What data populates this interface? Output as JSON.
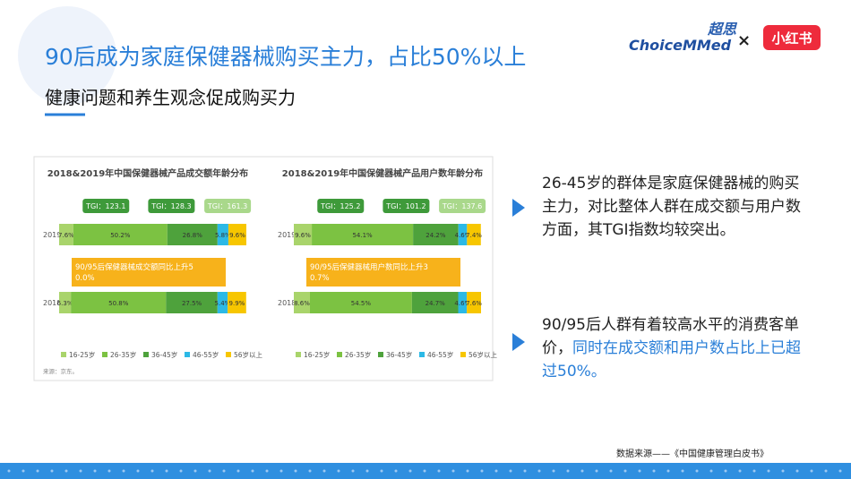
{
  "header": {
    "title": "90后成为家庭保健器械购买主力，占比50%以上",
    "subtitle": "健康问题和养生观念促成购买力",
    "logo_cn": "超思",
    "logo_en": "ChoiceMMed",
    "cross": "×",
    "partner": "小红书"
  },
  "chart_data": [
    {
      "type": "stacked_bar",
      "orientation": "horizontal",
      "title": "2018&2019年中国保健器械产品成交额年龄分布",
      "categories": [
        "2019",
        "2018"
      ],
      "xlim": [
        0,
        100
      ],
      "series": [
        {
          "name": "16-25岁",
          "color": "#a9d46b",
          "values": [
            7.6,
            6.3
          ],
          "value_labels": [
            "7.6%",
            "6.3%"
          ]
        },
        {
          "name": "26-35岁",
          "color": "#7cc242",
          "values": [
            50.2,
            50.8
          ],
          "value_labels": [
            "50.2%",
            "50.8%"
          ]
        },
        {
          "name": "36-45岁",
          "color": "#4ea23c",
          "values": [
            26.8,
            27.5
          ],
          "value_labels": [
            "26.8%",
            "27.5%"
          ]
        },
        {
          "name": "46-55岁",
          "color": "#2cb9e6",
          "values": [
            5.8,
            5.4
          ],
          "value_labels": [
            "5.8%",
            "5.4%"
          ]
        },
        {
          "name": "56岁以上",
          "color": "#f7c600",
          "values": [
            9.6,
            9.9
          ],
          "value_labels": [
            "9.6%",
            "9.9%"
          ]
        }
      ],
      "annotations": [
        "TGI：123.1",
        "TGI：128.3",
        "TGI：161.3",
        "90/95后保健器械成交额同比上升50.0%"
      ],
      "source": "来源：京东。"
    },
    {
      "type": "stacked_bar",
      "orientation": "horizontal",
      "title": "2018&2019年中国保健器械产品用户数年龄分布",
      "categories": [
        "2019",
        "2018"
      ],
      "xlim": [
        0,
        100
      ],
      "series": [
        {
          "name": "16-25岁",
          "color": "#a9d46b",
          "values": [
            9.6,
            8.6
          ],
          "value_labels": [
            "9.6%",
            "8.6%"
          ]
        },
        {
          "name": "26-35岁",
          "color": "#7cc242",
          "values": [
            54.1,
            54.5
          ],
          "value_labels": [
            "54.1%",
            "54.5%"
          ]
        },
        {
          "name": "36-45岁",
          "color": "#4ea23c",
          "values": [
            24.2,
            24.7
          ],
          "value_labels": [
            "24.2%",
            "24.7%"
          ]
        },
        {
          "name": "46-55岁",
          "color": "#2cb9e6",
          "values": [
            4.6,
            4.6
          ],
          "value_labels": [
            "4.6%",
            "4.6%"
          ]
        },
        {
          "name": "56岁以上",
          "color": "#f7c600",
          "values": [
            7.4,
            7.6
          ],
          "value_labels": [
            "7.4%",
            "7.6%"
          ]
        }
      ],
      "annotations": [
        "TGI：125.2",
        "TGI：101.2",
        "TGI：137.6",
        "90/95后保健器械用户数同比上升30.7%"
      ]
    }
  ],
  "points": [
    {
      "text": "26-45岁的群体是家庭保健器械的购买主力，对比整体人群在成交额与用户数方面，其TGI指数均较突出。"
    },
    {
      "text": "90/95后人群有着较高水平的消费客单价，",
      "highlight": "同时在成交额和用户数占比上已超过50%。"
    }
  ],
  "footer": "数据来源——《中国健康管理白皮书》"
}
